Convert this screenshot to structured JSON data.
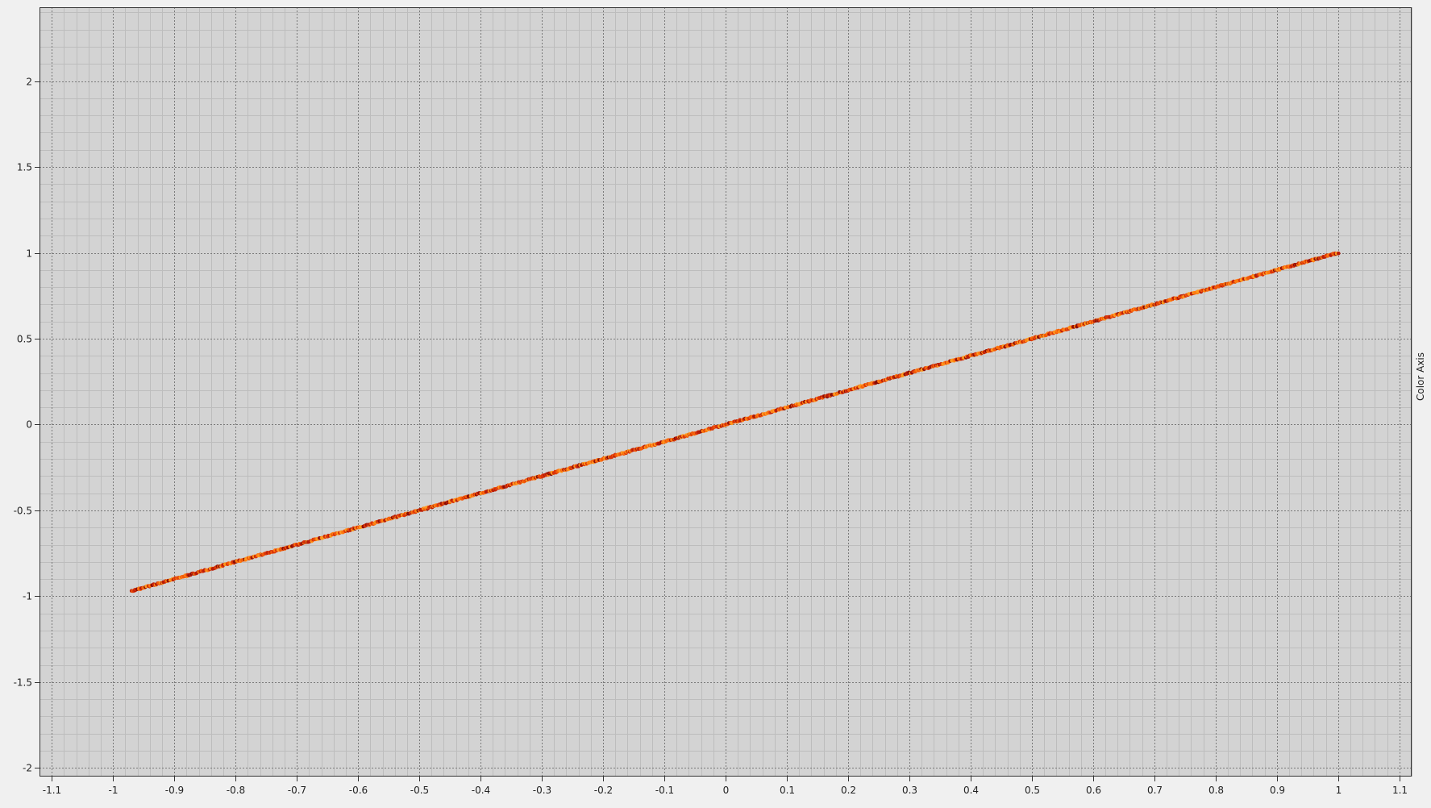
{
  "chart_data": {
    "type": "scatter",
    "title": "",
    "xlabel": "",
    "ylabel": "",
    "color_axis_label": "Color Axis",
    "xlim": [
      -1.12,
      1.12
    ],
    "ylim": [
      -2.05,
      2.43
    ],
    "x_ticks": [
      -1.1,
      -1,
      -0.9,
      -0.8,
      -0.7,
      -0.6,
      -0.5,
      -0.4,
      -0.3,
      -0.2,
      -0.1,
      0,
      0.1,
      0.2,
      0.3,
      0.4,
      0.5,
      0.6,
      0.7,
      0.8,
      0.9,
      1,
      1.1
    ],
    "y_ticks": [
      -2,
      -1.5,
      -1,
      -0.5,
      0,
      0.5,
      1,
      1.5,
      2
    ],
    "grid": true,
    "legend": "none",
    "series": [
      {
        "x_range": [
          -0.97,
          1.0
        ],
        "relation": "y = x",
        "point_count": 1200,
        "colormap": [
          "#ff9a1f",
          "#ff7a10",
          "#f25a0a",
          "#d9340a",
          "#b81c08",
          "#8a0d05"
        ]
      }
    ],
    "colors": {
      "plot_background": "#d3d3d3",
      "page_background": "#f0f0f0",
      "major_grid": "#7a7a7a",
      "minor_grid": "#bdbdbd",
      "axis": "#333333"
    }
  }
}
